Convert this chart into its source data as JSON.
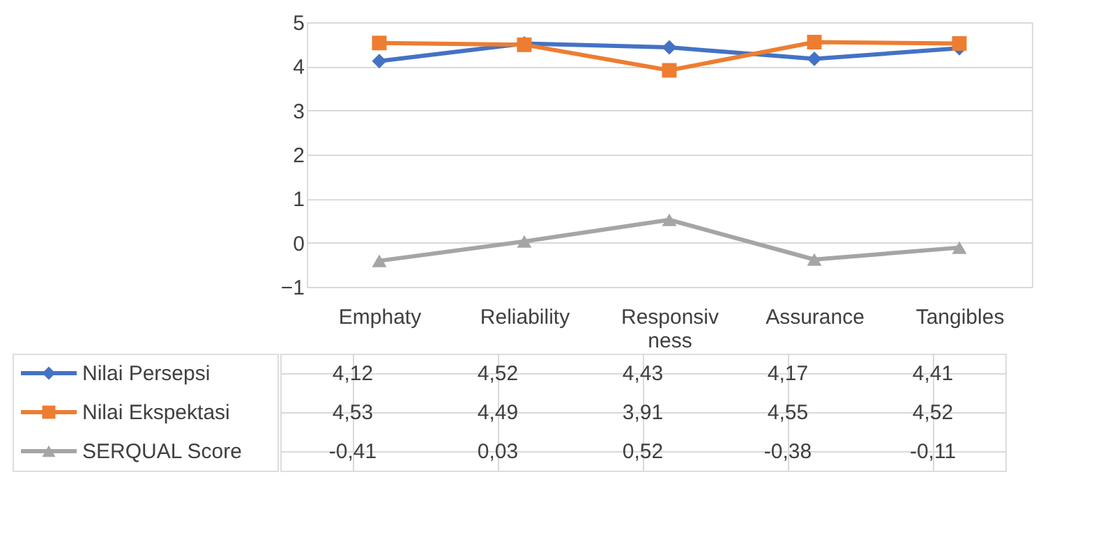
{
  "chart_data": {
    "type": "line",
    "categories": [
      "Emphaty",
      "Reliability",
      "Responsivness",
      "Assurance",
      "Tangibles"
    ],
    "series": [
      {
        "name": "Nilai Persepsi",
        "color": "#4472c4",
        "marker": "diamond",
        "values": [
          4.12,
          4.52,
          4.43,
          4.17,
          4.41
        ],
        "value_labels": [
          "4,12",
          "4,52",
          "4,43",
          "4,17",
          "4,41"
        ]
      },
      {
        "name": "Nilai Ekspektasi",
        "color": "#ed7d31",
        "marker": "square",
        "values": [
          4.53,
          4.49,
          3.91,
          4.55,
          4.52
        ],
        "value_labels": [
          "4,53",
          "4,49",
          "3,91",
          "4,55",
          "4,52"
        ]
      },
      {
        "name": "SERQUAL Score",
        "color": "#a5a5a5",
        "marker": "triangle",
        "values": [
          -0.41,
          0.03,
          0.52,
          -0.38,
          -0.11
        ],
        "value_labels": [
          "-0,41",
          "0,03",
          "0,52",
          "-0,38",
          "-0,11"
        ]
      }
    ],
    "ylim": [
      -1,
      5
    ],
    "yticks": [
      -1,
      0,
      1,
      2,
      3,
      4,
      5
    ],
    "grid": "y",
    "legend": "bottom left"
  }
}
